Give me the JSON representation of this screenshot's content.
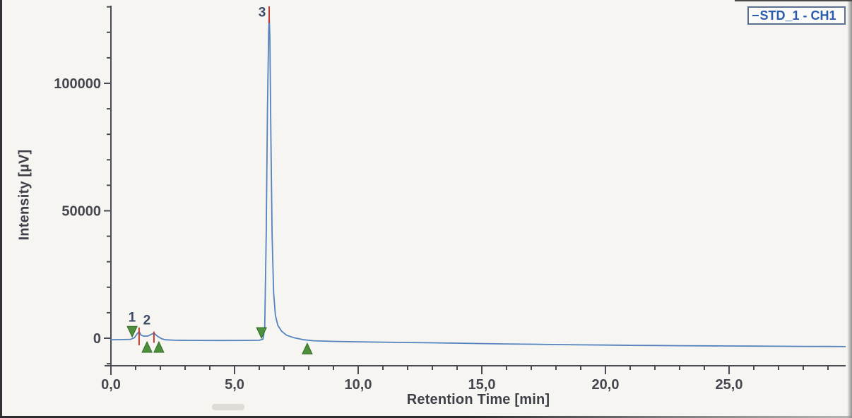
{
  "legend": {
    "label": "STD_1 - CH1"
  },
  "chart_data": {
    "type": "line",
    "subtype": "chromatogram",
    "title": "",
    "xlabel": "Retention Time [min]",
    "ylabel": "Intensity [µV]",
    "xlim": [
      0,
      29.7
    ],
    "ylim": [
      -11000,
      131000
    ],
    "x_major_ticks": [
      {
        "value": 0,
        "label": "0,0"
      },
      {
        "value": 5,
        "label": "5,0"
      },
      {
        "value": 10,
        "label": "10,0"
      },
      {
        "value": 15,
        "label": "15,0"
      },
      {
        "value": 20,
        "label": "20,0"
      },
      {
        "value": 25,
        "label": "25,0"
      }
    ],
    "x_minor_step_min": 1,
    "y_major_ticks": [
      {
        "value": 0,
        "label": "0"
      },
      {
        "value": 50000,
        "label": "50000"
      },
      {
        "value": 100000,
        "label": "100000"
      }
    ],
    "y_minor_step_uv": 10000,
    "grid": false,
    "legend_position": "top-right",
    "series": [
      {
        "name": "STD_1 - CH1",
        "color": "#5583be",
        "points": [
          [
            0.0,
            -600
          ],
          [
            0.4,
            -550
          ],
          [
            0.8,
            -450
          ],
          [
            0.95,
            200
          ],
          [
            1.05,
            1600
          ],
          [
            1.14,
            2600
          ],
          [
            1.22,
            1200
          ],
          [
            1.34,
            800
          ],
          [
            1.5,
            900
          ],
          [
            1.63,
            1500
          ],
          [
            1.74,
            2000
          ],
          [
            1.88,
            800
          ],
          [
            2.05,
            -200
          ],
          [
            2.2,
            -600
          ],
          [
            2.6,
            -800
          ],
          [
            3.5,
            -850
          ],
          [
            4.5,
            -900
          ],
          [
            5.5,
            -850
          ],
          [
            6.0,
            -800
          ],
          [
            6.15,
            -400
          ],
          [
            6.22,
            4000
          ],
          [
            6.28,
            40000
          ],
          [
            6.33,
            90000
          ],
          [
            6.38,
            120000
          ],
          [
            6.4,
            127000
          ],
          [
            6.43,
            118000
          ],
          [
            6.47,
            80000
          ],
          [
            6.52,
            40000
          ],
          [
            6.58,
            18000
          ],
          [
            6.65,
            9000
          ],
          [
            6.75,
            5000
          ],
          [
            6.9,
            2800
          ],
          [
            7.1,
            1200
          ],
          [
            7.4,
            200
          ],
          [
            7.8,
            -600
          ],
          [
            8.2,
            -1000
          ],
          [
            9.0,
            -1250
          ],
          [
            10.0,
            -1400
          ],
          [
            11.0,
            -1550
          ],
          [
            12.0,
            -1700
          ],
          [
            13.0,
            -1800
          ],
          [
            14.0,
            -1950
          ],
          [
            15.0,
            -2100
          ],
          [
            16.0,
            -2250
          ],
          [
            17.0,
            -2350
          ],
          [
            18.0,
            -2500
          ],
          [
            19.0,
            -2600
          ],
          [
            20.0,
            -2700
          ],
          [
            21.0,
            -2800
          ],
          [
            22.0,
            -2850
          ],
          [
            23.0,
            -2950
          ],
          [
            24.0,
            -3000
          ],
          [
            25.0,
            -3050
          ],
          [
            26.0,
            -3100
          ],
          [
            27.0,
            -3150
          ],
          [
            28.0,
            -3200
          ],
          [
            29.0,
            -3250
          ],
          [
            29.7,
            -3300
          ]
        ]
      }
    ],
    "peaks": [
      {
        "label": "1",
        "rt_min": 1.14,
        "apex_uv": 2600,
        "red_tick_uv": [
          4200,
          -2800
        ],
        "label_uv": 8400
      },
      {
        "label": "2",
        "rt_min": 1.74,
        "apex_uv": 2000,
        "red_tick_uv": [
          2600,
          -1800
        ],
        "label_uv": 7300
      },
      {
        "label": "3",
        "rt_min": 6.4,
        "apex_uv": 127000,
        "red_tick_uv": [
          130200,
          123600
        ],
        "label_uv": 128100
      }
    ],
    "integration_markers": [
      {
        "t_min": 0.86,
        "direction": "down",
        "tip_uv": 500
      },
      {
        "t_min": 1.46,
        "direction": "up",
        "tip_uv": -1400
      },
      {
        "t_min": 1.94,
        "direction": "up",
        "tip_uv": -1400
      },
      {
        "t_min": 6.09,
        "direction": "down",
        "tip_uv": 0
      },
      {
        "t_min": 7.94,
        "direction": "up",
        "tip_uv": -2000
      }
    ],
    "colors": {
      "trace": "#5583be",
      "apex_marker": "#c23b2e",
      "integration_marker_fill": "#4d8f3c",
      "integration_marker_stroke": "#2f6b22",
      "peak_label": "#3b4a66",
      "axis": "#4a4a52",
      "tick_label": "#46464f",
      "legend_text": "#2b5cad",
      "legend_border": "#5a7190",
      "background": "#f6f5f2"
    }
  }
}
